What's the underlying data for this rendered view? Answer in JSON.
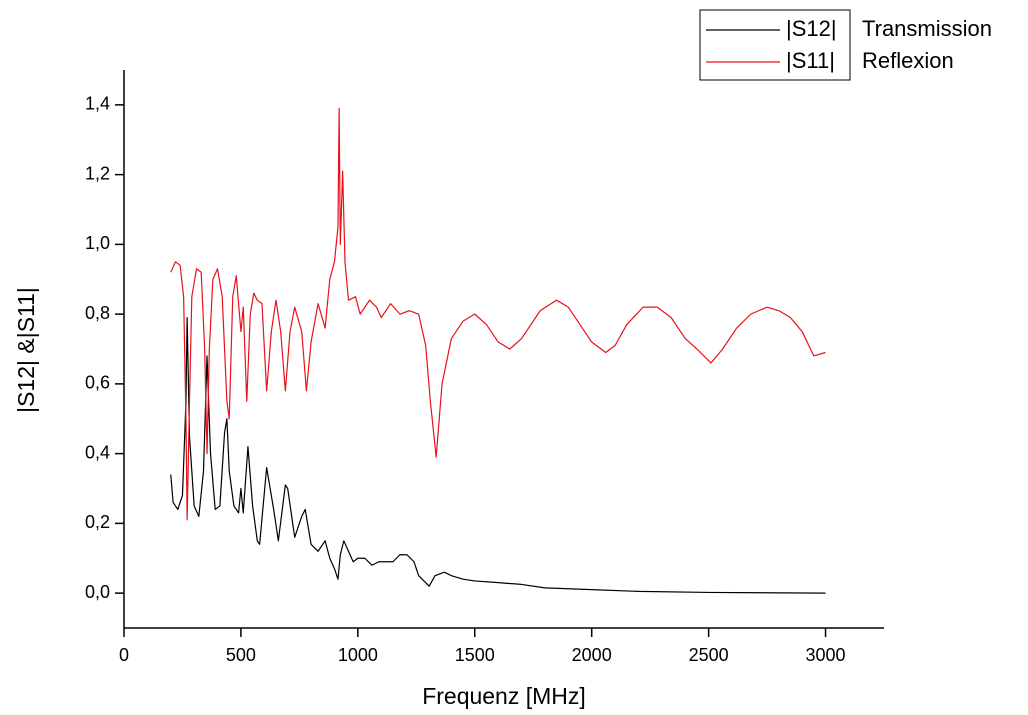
{
  "chart_data": {
    "type": "line",
    "xlabel": "Frequenz [MHz]",
    "ylabel": "|S12| &|S11|",
    "xlim": [
      0,
      3250
    ],
    "ylim": [
      -0.1,
      1.5
    ],
    "xticks": [
      0,
      500,
      1000,
      1500,
      2000,
      2500,
      3000
    ],
    "yticks": [
      {
        "value": 0,
        "label": "0,0"
      },
      {
        "value": 0.2,
        "label": "0,2"
      },
      {
        "value": 0.4,
        "label": "0,4"
      },
      {
        "value": 0.6,
        "label": "0,6"
      },
      {
        "value": 0.8,
        "label": "0,8"
      },
      {
        "value": 1.0,
        "label": "1,0"
      },
      {
        "value": 1.2,
        "label": "1,2"
      },
      {
        "value": 1.4,
        "label": "1,4"
      }
    ],
    "legend": "top-right",
    "series": [
      {
        "name": "|S12|",
        "description": "Transmission",
        "color": "#000000",
        "x": [
          200,
          210,
          230,
          250,
          265,
          270,
          280,
          300,
          320,
          340,
          355,
          370,
          390,
          410,
          430,
          440,
          450,
          470,
          490,
          500,
          510,
          530,
          550,
          570,
          580,
          610,
          640,
          660,
          690,
          700,
          730,
          760,
          775,
          800,
          830,
          860,
          880,
          900,
          915,
          925,
          940,
          960,
          980,
          1000,
          1030,
          1060,
          1090,
          1120,
          1150,
          1180,
          1210,
          1240,
          1260,
          1290,
          1305,
          1330,
          1370,
          1400,
          1450,
          1500,
          1600,
          1700,
          1800,
          2000,
          2200,
          2500,
          3000
        ],
        "values": [
          0.34,
          0.26,
          0.24,
          0.28,
          0.55,
          0.79,
          0.45,
          0.25,
          0.22,
          0.35,
          0.68,
          0.4,
          0.24,
          0.25,
          0.46,
          0.5,
          0.35,
          0.25,
          0.23,
          0.3,
          0.23,
          0.42,
          0.25,
          0.15,
          0.14,
          0.36,
          0.24,
          0.15,
          0.31,
          0.3,
          0.16,
          0.22,
          0.24,
          0.14,
          0.12,
          0.15,
          0.1,
          0.07,
          0.04,
          0.11,
          0.15,
          0.12,
          0.09,
          0.1,
          0.1,
          0.08,
          0.09,
          0.09,
          0.09,
          0.11,
          0.11,
          0.09,
          0.05,
          0.03,
          0.02,
          0.05,
          0.06,
          0.05,
          0.04,
          0.035,
          0.03,
          0.025,
          0.015,
          0.01,
          0.005,
          0.002,
          0.0
        ]
      },
      {
        "name": "|S11|",
        "description": "Reflexion",
        "color": "#e8101a",
        "x": [
          200,
          220,
          240,
          255,
          265,
          270,
          280,
          290,
          310,
          330,
          345,
          355,
          365,
          380,
          400,
          420,
          440,
          450,
          465,
          480,
          500,
          510,
          525,
          540,
          555,
          570,
          590,
          610,
          630,
          650,
          670,
          690,
          710,
          730,
          760,
          780,
          800,
          830,
          860,
          880,
          900,
          915,
          920,
          925,
          935,
          945,
          960,
          990,
          1010,
          1050,
          1080,
          1100,
          1140,
          1180,
          1220,
          1260,
          1290,
          1310,
          1335,
          1360,
          1400,
          1450,
          1500,
          1550,
          1600,
          1650,
          1700,
          1780,
          1850,
          1900,
          1950,
          2000,
          2060,
          2100,
          2150,
          2220,
          2280,
          2340,
          2400,
          2450,
          2510,
          2560,
          2620,
          2680,
          2750,
          2800,
          2850,
          2900,
          2950,
          3000
        ],
        "values": [
          0.92,
          0.95,
          0.94,
          0.85,
          0.5,
          0.21,
          0.55,
          0.85,
          0.93,
          0.92,
          0.7,
          0.4,
          0.7,
          0.9,
          0.93,
          0.85,
          0.55,
          0.5,
          0.85,
          0.91,
          0.75,
          0.82,
          0.55,
          0.8,
          0.86,
          0.84,
          0.83,
          0.58,
          0.75,
          0.84,
          0.75,
          0.58,
          0.75,
          0.82,
          0.75,
          0.58,
          0.72,
          0.83,
          0.76,
          0.9,
          0.95,
          1.05,
          1.39,
          1.0,
          1.21,
          0.95,
          0.84,
          0.85,
          0.8,
          0.84,
          0.82,
          0.79,
          0.83,
          0.8,
          0.81,
          0.8,
          0.71,
          0.55,
          0.39,
          0.6,
          0.73,
          0.78,
          0.8,
          0.77,
          0.72,
          0.7,
          0.73,
          0.81,
          0.84,
          0.82,
          0.77,
          0.72,
          0.69,
          0.71,
          0.77,
          0.82,
          0.82,
          0.79,
          0.73,
          0.7,
          0.66,
          0.7,
          0.76,
          0.8,
          0.82,
          0.81,
          0.79,
          0.75,
          0.68,
          0.69
        ]
      }
    ]
  }
}
